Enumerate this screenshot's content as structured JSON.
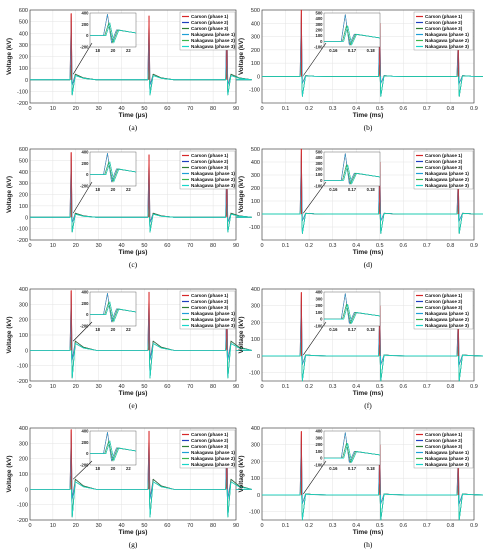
{
  "figure": {
    "legend_entries": [
      "Carson (phase 1)",
      "Carson (phase 2)",
      "Carson (phase 3)",
      "Nakagawa (phase 1)",
      "Nakagawa (phase 2)",
      "Nakagawa (phase 3)"
    ],
    "colors": {
      "carson_phase_1": "#d62728",
      "carson_phase_2": "#1f3fbf",
      "carson_phase_3": "#2e7d32",
      "nakagawa_phase_1": "#1f9fd6",
      "nakagawa_phase_2": "#3cb44b",
      "nakagawa_phase_3": "#18d6c9"
    }
  },
  "chart_data": [
    {
      "caption": "(a)",
      "type": "line",
      "column": "left",
      "xlabel": "Time (μs)",
      "ylabel": "Voltage (kV)",
      "xlim": [
        0,
        90
      ],
      "ylim": [
        -200,
        600
      ],
      "xticks": [
        "0",
        "10",
        "20",
        "30",
        "40",
        "50",
        "60",
        "70",
        "80",
        "90"
      ],
      "yticks": [
        "-200",
        "-100",
        "0",
        "100",
        "200",
        "300",
        "400",
        "500",
        "600"
      ],
      "grid": true,
      "spikes": [
        {
          "t": 18,
          "peak": 570
        },
        {
          "t": 52,
          "peak": 550
        },
        {
          "t": 86,
          "peak": 550
        }
      ],
      "min_value": -130,
      "decay_bump": 80,
      "inset": {
        "xticks": [
          "18",
          "20",
          "22"
        ],
        "yticks": [
          "400",
          "200",
          "0",
          "-200"
        ],
        "ylim": [
          -200,
          400
        ]
      }
    },
    {
      "caption": "(b)",
      "type": "line",
      "column": "right",
      "xlabel": "Time (ms)",
      "ylabel": "Voltage (kV)",
      "xlim": [
        0,
        0.9
      ],
      "ylim": [
        -200,
        500
      ],
      "xticks": [
        "0",
        "0.1",
        "0.2",
        "0.3",
        "0.4",
        "0.5",
        "0.6",
        "0.7",
        "0.8",
        "0.9"
      ],
      "yticks": [
        "-100",
        "0",
        "100",
        "200",
        "300",
        "400",
        "500"
      ],
      "grid": true,
      "spikes": [
        {
          "t": 0.167,
          "peak": 500
        },
        {
          "t": 0.5,
          "peak": 400
        },
        {
          "t": 0.833,
          "peak": 300
        }
      ],
      "min_value": -150,
      "decay_bump": 10,
      "inset": {
        "xticks": [
          "0.16",
          "0.17",
          "0.18"
        ],
        "yticks": [
          "500",
          "400",
          "300",
          "200",
          "100",
          "0",
          "-100"
        ],
        "ylim": [
          -100,
          500
        ]
      }
    },
    {
      "caption": "(c)",
      "type": "line",
      "column": "left",
      "xlabel": "Time (μs)",
      "ylabel": "Voltage (kV)",
      "xlim": [
        0,
        90
      ],
      "ylim": [
        -200,
        600
      ],
      "xticks": [
        "0",
        "10",
        "20",
        "30",
        "40",
        "50",
        "60",
        "70",
        "80",
        "90"
      ],
      "yticks": [
        "-200",
        "-100",
        "0",
        "100",
        "200",
        "300",
        "400",
        "500",
        "600"
      ],
      "grid": true,
      "spikes": [
        {
          "t": 18,
          "peak": 570
        },
        {
          "t": 52,
          "peak": 550
        },
        {
          "t": 86,
          "peak": 550
        }
      ],
      "min_value": -130,
      "decay_bump": 60,
      "inset": {
        "xticks": [
          "18",
          "20",
          "22"
        ],
        "yticks": [
          "400",
          "200",
          "0",
          "-200"
        ],
        "ylim": [
          -200,
          400
        ]
      }
    },
    {
      "caption": "(d)",
      "type": "line",
      "column": "right",
      "xlabel": "Time (ms)",
      "ylabel": "Voltage (kV)",
      "xlim": [
        0,
        0.9
      ],
      "ylim": [
        -200,
        500
      ],
      "xticks": [
        "0",
        "0.1",
        "0.2",
        "0.3",
        "0.4",
        "0.5",
        "0.6",
        "0.7",
        "0.8",
        "0.9"
      ],
      "yticks": [
        "-100",
        "0",
        "100",
        "200",
        "300",
        "400",
        "500"
      ],
      "grid": true,
      "spikes": [
        {
          "t": 0.167,
          "peak": 500
        },
        {
          "t": 0.5,
          "peak": 400
        },
        {
          "t": 0.833,
          "peak": 300
        }
      ],
      "min_value": -150,
      "decay_bump": 10,
      "inset": {
        "xticks": [
          "0.16",
          "0.17",
          "0.18"
        ],
        "yticks": [
          "500",
          "400",
          "300",
          "200",
          "100",
          "0",
          "-100"
        ],
        "ylim": [
          -100,
          500
        ]
      }
    },
    {
      "caption": "(e)",
      "type": "line",
      "column": "left",
      "xlabel": "Time (μs)",
      "ylabel": "Voltage (kV)",
      "xlim": [
        0,
        90
      ],
      "ylim": [
        -200,
        400
      ],
      "xticks": [
        "0",
        "10",
        "20",
        "30",
        "40",
        "50",
        "60",
        "70",
        "80",
        "90"
      ],
      "yticks": [
        "-200",
        "-100",
        "0",
        "100",
        "200",
        "300",
        "400"
      ],
      "grid": true,
      "spikes": [
        {
          "t": 18,
          "peak": 390
        },
        {
          "t": 52,
          "peak": 380
        },
        {
          "t": 86,
          "peak": 370
        }
      ],
      "min_value": -180,
      "decay_bump": 100,
      "inset": {
        "xticks": [
          "18",
          "20",
          "22"
        ],
        "yticks": [
          "400",
          "200",
          "0",
          "-200"
        ],
        "ylim": [
          -200,
          400
        ]
      }
    },
    {
      "caption": "(f)",
      "type": "line",
      "column": "right",
      "xlabel": "Time (ms)",
      "ylabel": "Voltage (kV)",
      "xlim": [
        0,
        0.9
      ],
      "ylim": [
        -150,
        400
      ],
      "xticks": [
        "0",
        "0.1",
        "0.2",
        "0.3",
        "0.4",
        "0.5",
        "0.6",
        "0.7",
        "0.8",
        "0.9"
      ],
      "yticks": [
        "-100",
        "0",
        "100",
        "200",
        "300",
        "400"
      ],
      "grid": true,
      "spikes": [
        {
          "t": 0.167,
          "peak": 380
        },
        {
          "t": 0.5,
          "peak": 300
        },
        {
          "t": 0.833,
          "peak": 250
        }
      ],
      "min_value": -150,
      "decay_bump": 10,
      "inset": {
        "xticks": [
          "0.16",
          "0.17",
          "0.18"
        ],
        "yticks": [
          "400",
          "300",
          "200",
          "100",
          "0",
          "-100"
        ],
        "ylim": [
          -100,
          400
        ]
      }
    },
    {
      "caption": "(g)",
      "type": "line",
      "column": "left",
      "xlabel": "Time (μs)",
      "ylabel": "Voltage (kV)",
      "xlim": [
        0,
        90
      ],
      "ylim": [
        -200,
        400
      ],
      "xticks": [
        "0",
        "10",
        "20",
        "30",
        "40",
        "50",
        "60",
        "70",
        "80",
        "90"
      ],
      "yticks": [
        "-200",
        "-100",
        "0",
        "100",
        "200",
        "300",
        "400"
      ],
      "grid": true,
      "spikes": [
        {
          "t": 18,
          "peak": 390
        },
        {
          "t": 52,
          "peak": 380
        },
        {
          "t": 86,
          "peak": 370
        }
      ],
      "min_value": -180,
      "decay_bump": 110,
      "inset": {
        "xticks": [
          "18",
          "20",
          "22"
        ],
        "yticks": [
          "400",
          "200",
          "0",
          "-200"
        ],
        "ylim": [
          -200,
          400
        ]
      }
    },
    {
      "caption": "(h)",
      "type": "line",
      "column": "right",
      "xlabel": "Time (ms)",
      "ylabel": "Voltage (kV)",
      "xlim": [
        0,
        0.9
      ],
      "ylim": [
        -150,
        400
      ],
      "xticks": [
        "0",
        "0.1",
        "0.2",
        "0.3",
        "0.4",
        "0.5",
        "0.6",
        "0.7",
        "0.8",
        "0.9"
      ],
      "yticks": [
        "-100",
        "0",
        "100",
        "200",
        "300",
        "400"
      ],
      "grid": true,
      "spikes": [
        {
          "t": 0.167,
          "peak": 380
        },
        {
          "t": 0.5,
          "peak": 300
        },
        {
          "t": 0.833,
          "peak": 250
        }
      ],
      "min_value": -150,
      "decay_bump": 10,
      "inset": {
        "xticks": [
          "0.16",
          "0.17",
          "0.18"
        ],
        "yticks": [
          "400",
          "300",
          "200",
          "100",
          "0",
          "-100"
        ],
        "ylim": [
          -100,
          400
        ]
      }
    }
  ]
}
